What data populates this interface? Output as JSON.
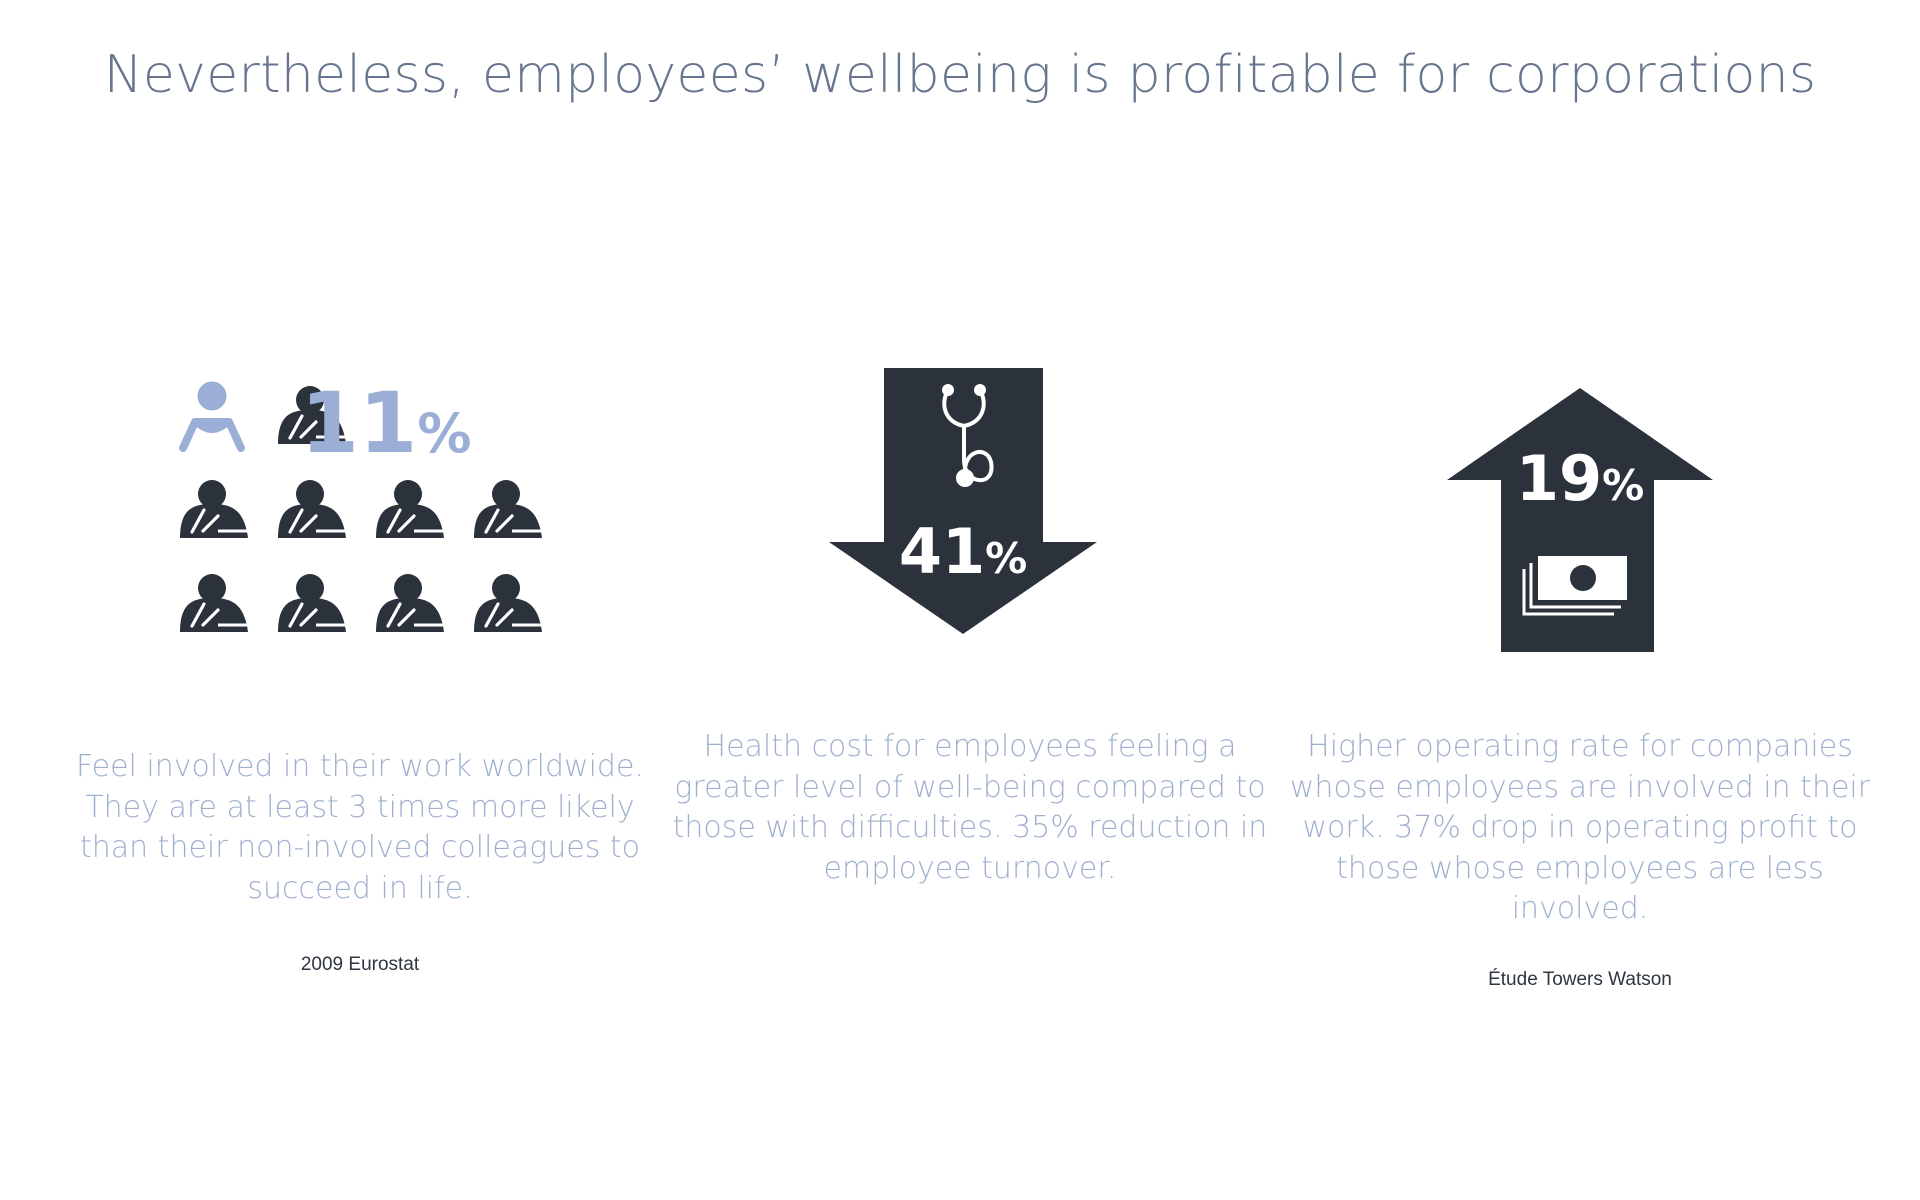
{
  "title": "Nevertheless, employees’ wellbeing is profitable for corporations",
  "colors": {
    "title": "#67758e",
    "dark": "#2b323b",
    "accent": "#9bafd6",
    "description": "#9fb0cf",
    "source": "#2f3541"
  },
  "stats": [
    {
      "number": "11",
      "unit": "%",
      "value_percent": 11,
      "icon": "people-grid-icon",
      "highlighted_people": 1,
      "total_people": 10,
      "description": "Feel involved in their work worldwide. They are at least 3 times more likely than their non-involved colleagues to succeed in life.",
      "source": "2009 Eurostat"
    },
    {
      "number": "41",
      "unit": "%",
      "value_percent": 41,
      "direction": "down",
      "icon": "stethoscope-icon",
      "description": "Health cost for employees feeling a greater level of well-being compared to those with difficulties. 35% reduction in employee turnover.",
      "source": ""
    },
    {
      "number": "19",
      "unit": "%",
      "value_percent": 19,
      "direction": "up",
      "icon": "money-stack-icon",
      "description": "Higher operating rate for companies whose employees are involved in their work. 37% drop in operating profit to those whose employees are less involved.",
      "source": "Étude Towers Watson"
    }
  ]
}
